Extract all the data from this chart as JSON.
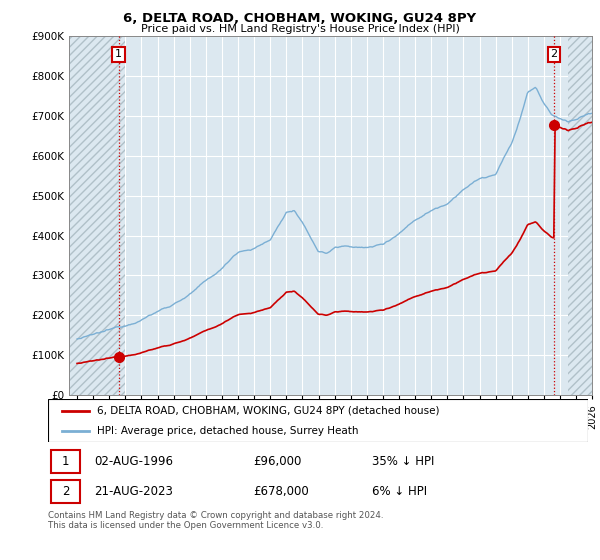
{
  "title": "6, DELTA ROAD, CHOBHAM, WOKING, GU24 8PY",
  "subtitle": "Price paid vs. HM Land Registry's House Price Index (HPI)",
  "ylim": [
    0,
    900000
  ],
  "yticks": [
    0,
    100000,
    200000,
    300000,
    400000,
    500000,
    600000,
    700000,
    800000,
    900000
  ],
  "xlim_start": 1993.5,
  "xlim_end": 2026.0,
  "point1_x": 1996.58,
  "point1_y": 96000,
  "point1_label": "1",
  "point2_x": 2023.63,
  "point2_y": 678000,
  "point2_label": "2",
  "legend_line1": "6, DELTA ROAD, CHOBHAM, WOKING, GU24 8PY (detached house)",
  "legend_line2": "HPI: Average price, detached house, Surrey Heath",
  "footer": "Contains HM Land Registry data © Crown copyright and database right 2024.\nThis data is licensed under the Open Government Licence v3.0.",
  "hpi_color": "#7bafd4",
  "price_color": "#cc0000",
  "point_color": "#cc0000",
  "grid_color": "#c8d8e8",
  "vline_color": "#cc0000",
  "chart_bg": "#dce8f0",
  "hatch_edgecolor": "#b0c0c8"
}
